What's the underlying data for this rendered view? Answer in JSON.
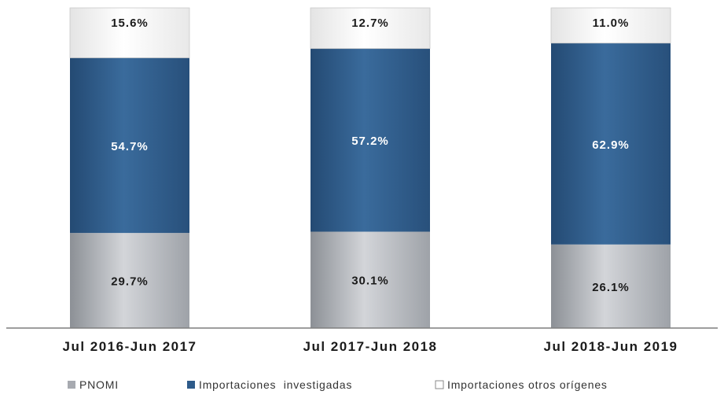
{
  "chart_data": {
    "type": "bar",
    "stacked": true,
    "percent": true,
    "categories": [
      "Jul 2016-Jun 2017",
      "Jul 2017-Jun 2018",
      "Jul 2018-Jun 2019"
    ],
    "series": [
      {
        "name": "PNOMI",
        "values": [
          29.7,
          30.1,
          26.1
        ],
        "labels": [
          "29.7%",
          "30.1%",
          "26.1%"
        ],
        "color": "#a7aab0",
        "label_color": "#1a1a1a"
      },
      {
        "name": "Importaciones  investigadas",
        "values": [
          54.7,
          57.2,
          62.9
        ],
        "labels": [
          "54.7%",
          "57.2%",
          "62.9%"
        ],
        "color": "#2e5b8a",
        "label_color": "#ffffff"
      },
      {
        "name": "Importaciones otros orígenes",
        "values": [
          15.6,
          12.7,
          11.0
        ],
        "labels": [
          "15.6%",
          "12.7%",
          "11.0%"
        ],
        "color": "#f1f1f1",
        "label_color": "#1a1a1a"
      }
    ],
    "ylim": [
      0,
      100
    ],
    "legend_position": "bottom",
    "grid": false
  }
}
